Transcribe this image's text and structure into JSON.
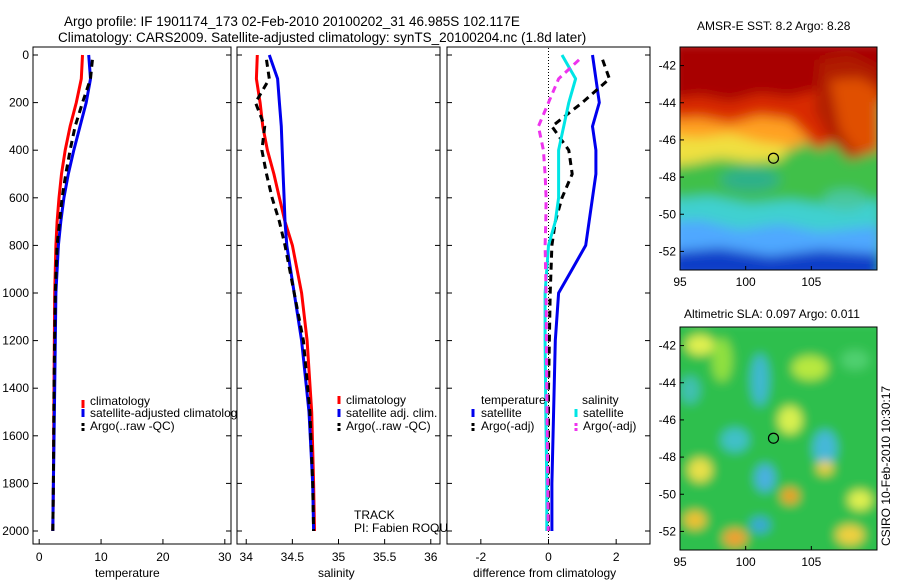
{
  "figure": {
    "title_line1": "Argo profile: IF 1901174_173 02-Feb-2010 20100202_31 46.985S 102.117E",
    "title_line2": "Climatology: CARS2009. Satellite-adjusted climatology: synTS_20100204.nc (1.8d later)",
    "track_label": "TRACK",
    "pi_label": "PI: Fabien ROQUET",
    "credit": "CSIRO 10-Feb-2010 10:30:17"
  },
  "colors": {
    "climatology": "#ff0000",
    "satellite": "#0000ee",
    "argo": "#000000",
    "sat_salinity": "#00e5e5",
    "argo_salinity_adj": "#ee33ee"
  },
  "chart_data": [
    {
      "type": "line",
      "xlabel": "temperature",
      "ylabel": "",
      "xlim": [
        -1,
        31
      ],
      "ylim": [
        2050,
        0
      ],
      "x_ticks": [
        0,
        10,
        20,
        30
      ],
      "y_ticks": [
        0,
        200,
        400,
        600,
        800,
        1000,
        1200,
        1400,
        1600,
        1800,
        2000
      ],
      "legend_position": "lower-left",
      "series": [
        {
          "name": "climatology",
          "color": "#ff0000",
          "style": "solid",
          "x": [
            7.0,
            6.8,
            6.0,
            5.0,
            4.2,
            3.6,
            3.2,
            2.9,
            2.7,
            2.5,
            2.4,
            2.3,
            2.2
          ],
          "y": [
            0,
            100,
            200,
            300,
            400,
            500,
            600,
            700,
            800,
            1000,
            1400,
            1800,
            2000
          ]
        },
        {
          "name": "satellite-adjusted climatology",
          "color": "#0000ee",
          "style": "solid",
          "x": [
            8.0,
            8.3,
            7.6,
            6.6,
            5.6,
            4.7,
            4.0,
            3.5,
            3.1,
            2.7,
            2.5,
            2.3,
            2.2
          ],
          "y": [
            0,
            100,
            200,
            300,
            400,
            500,
            600,
            700,
            800,
            1000,
            1400,
            1800,
            2000
          ]
        },
        {
          "name": "Argo(..raw -QC)",
          "color": "#000000",
          "style": "dashed",
          "x": [
            8.6,
            8.3,
            7.0,
            5.8,
            5.0,
            4.3,
            3.7,
            3.3,
            2.9,
            2.6,
            2.4,
            2.3,
            2.2
          ],
          "y": [
            20,
            100,
            200,
            300,
            400,
            500,
            600,
            700,
            800,
            1000,
            1400,
            1800,
            2000
          ]
        }
      ]
    },
    {
      "type": "line",
      "xlabel": "salinity",
      "ylabel": "",
      "xlim": [
        33.9,
        36.1
      ],
      "ylim": [
        2050,
        0
      ],
      "x_ticks": [
        34,
        34.5,
        35,
        35.5,
        36
      ],
      "legend_position": "lower-right",
      "series": [
        {
          "name": "climatology",
          "color": "#ff0000",
          "style": "solid",
          "x": [
            34.12,
            34.11,
            34.15,
            34.18,
            34.23,
            34.3,
            34.36,
            34.42,
            34.5,
            34.6,
            34.66,
            34.71,
            34.73,
            34.74
          ],
          "y": [
            0,
            100,
            200,
            300,
            400,
            500,
            600,
            700,
            800,
            1000,
            1200,
            1500,
            1800,
            2000
          ]
        },
        {
          "name": "satellite adj. clim.",
          "color": "#0000ee",
          "style": "solid",
          "x": [
            34.25,
            34.34,
            34.36,
            34.38,
            34.39,
            34.4,
            34.41,
            34.42,
            34.44,
            34.52,
            34.6,
            34.68,
            34.72,
            34.73
          ],
          "y": [
            0,
            100,
            200,
            300,
            400,
            500,
            600,
            700,
            800,
            1000,
            1200,
            1500,
            1800,
            2000
          ]
        },
        {
          "name": "Argo(..raw -QC)",
          "color": "#000000",
          "style": "dashed",
          "x": [
            34.22,
            34.25,
            34.1,
            34.2,
            34.17,
            34.22,
            34.28,
            34.36,
            34.42,
            34.52,
            34.62,
            34.69,
            34.72,
            34.73
          ],
          "y": [
            20,
            100,
            200,
            300,
            400,
            500,
            600,
            700,
            800,
            1000,
            1200,
            1500,
            1800,
            2000
          ]
        }
      ]
    },
    {
      "type": "line",
      "xlabel": "difference from climatology",
      "ylabel": "",
      "xlim": [
        -3,
        3
      ],
      "ylim": [
        2050,
        0
      ],
      "x_ticks": [
        -2,
        0,
        2
      ],
      "legend_position": "lower-left",
      "legend_titles": [
        "temperature",
        "salinity"
      ],
      "series": [
        {
          "name": "satellite",
          "group": "temperature",
          "color": "#0000ee",
          "style": "solid",
          "x": [
            1.3,
            1.4,
            1.5,
            1.3,
            1.4,
            1.4,
            1.3,
            1.2,
            1.1,
            0.7,
            0.3,
            0.2,
            0.15,
            0.1,
            0.1
          ],
          "y": [
            0,
            100,
            200,
            300,
            400,
            500,
            600,
            700,
            800,
            900,
            1000,
            1200,
            1500,
            1800,
            2000
          ]
        },
        {
          "name": "Argo(-adj)",
          "group": "temperature",
          "color": "#000000",
          "style": "dashed",
          "x": [
            1.6,
            1.8,
            1.0,
            0.1,
            0.6,
            0.7,
            0.4,
            0.2,
            0.1,
            0.05,
            0.0,
            0.0,
            0.0
          ],
          "y": [
            20,
            100,
            200,
            300,
            400,
            500,
            600,
            700,
            800,
            1000,
            1400,
            1800,
            2000
          ]
        },
        {
          "name": "satellite",
          "group": "salinity",
          "color": "#00e5e5",
          "style": "solid",
          "x": [
            0.4,
            0.8,
            0.6,
            0.45,
            0.3,
            0.3,
            0.3,
            0.2,
            0.0,
            -0.1,
            -0.1,
            -0.08,
            -0.05,
            -0.05
          ],
          "y": [
            0,
            100,
            200,
            300,
            400,
            500,
            600,
            700,
            800,
            1000,
            1200,
            1500,
            1800,
            2000
          ]
        },
        {
          "name": "Argo(-adj)",
          "group": "salinity",
          "color": "#ee33ee",
          "style": "dashed",
          "x": [
            0.9,
            0.3,
            0.0,
            -0.3,
            -0.15,
            -0.1,
            -0.07,
            -0.08,
            -0.1,
            -0.07,
            -0.05,
            -0.02,
            -0.01
          ],
          "y": [
            20,
            100,
            200,
            300,
            400,
            500,
            600,
            700,
            800,
            1000,
            1400,
            1800,
            2000
          ]
        }
      ]
    },
    {
      "type": "heatmap",
      "title": "AMSR-E SST: 8.2 Argo: 8.28",
      "xlim": [
        95,
        110
      ],
      "ylim": [
        -53,
        -41
      ],
      "x_ticks": [
        95,
        100,
        105
      ],
      "y_ticks": [
        -42,
        -44,
        -46,
        -48,
        -50,
        -52
      ],
      "marker": {
        "lon": 102.117,
        "lat": -46.985
      }
    },
    {
      "type": "heatmap",
      "title": "Altimetric SLA: 0.097 Argo: 0.011",
      "xlim": [
        95,
        110
      ],
      "ylim": [
        -53,
        -41
      ],
      "x_ticks": [
        95,
        100,
        105
      ],
      "y_ticks": [
        -42,
        -44,
        -46,
        -48,
        -50,
        -52
      ],
      "marker": {
        "lon": 102.117,
        "lat": -46.985
      }
    }
  ]
}
